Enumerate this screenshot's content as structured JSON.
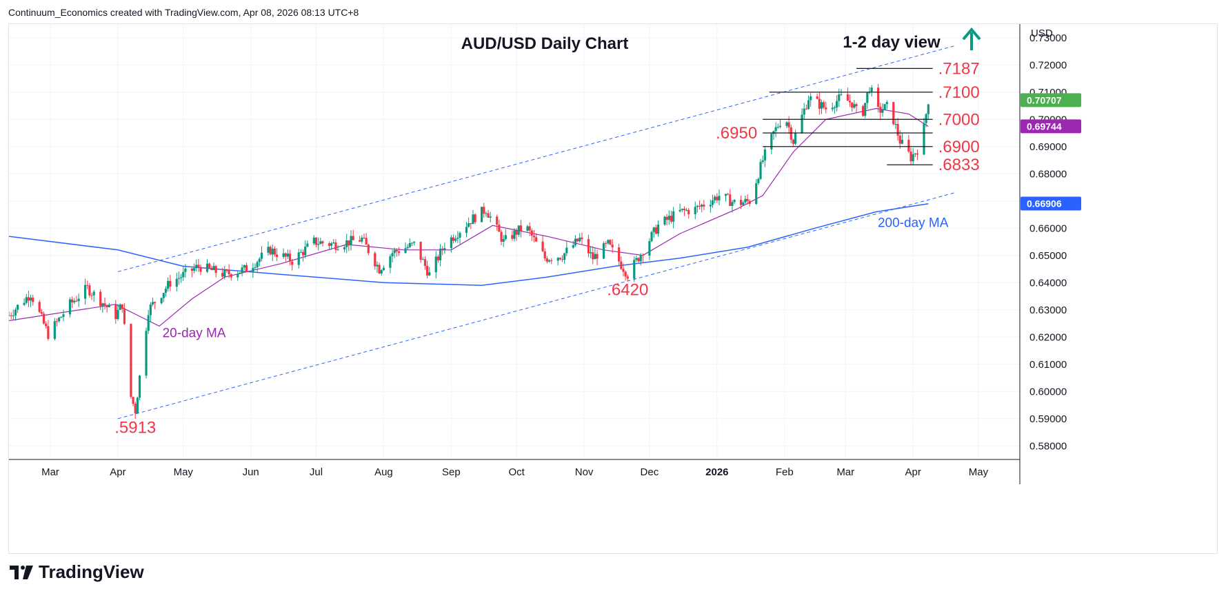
{
  "header": {
    "attribution": "Continuum_Economics created with TradingView.com, Apr 08, 2026 08:13 UTC+8"
  },
  "footer": {
    "brand": "TradingView"
  },
  "colors": {
    "up": "#089981",
    "down": "#f23645",
    "ma20": "#9c27b0",
    "ma200": "#2962ff",
    "channel": "#2962ff",
    "level": "#f23645",
    "last_price_bg": "#4caf50",
    "ma20_badge_bg": "#9c27b0",
    "ma200_badge_bg": "#2962ff",
    "arrow": "#089981"
  },
  "chart_data": {
    "type": "candlestick",
    "title": "AUD/USD Daily Chart",
    "view_label": "1-2 day view",
    "view_icon": "up-arrow-icon",
    "currency": "USD",
    "y_range": [
      0.575,
      0.735
    ],
    "y_ticks": [
      "0.73000",
      "0.72000",
      "0.71000",
      "0.70000",
      "0.69000",
      "0.68000",
      "0.67000",
      "0.66000",
      "0.65000",
      "0.64000",
      "0.63000",
      "0.62000",
      "0.61000",
      "0.60000",
      "0.59000",
      "0.58000"
    ],
    "x_ticks": [
      {
        "label": "Mar",
        "date": "2025-03-01"
      },
      {
        "label": "Apr",
        "date": "2025-04-01"
      },
      {
        "label": "May",
        "date": "2025-05-01"
      },
      {
        "label": "Jun",
        "date": "2025-06-01"
      },
      {
        "label": "Jul",
        "date": "2025-07-01"
      },
      {
        "label": "Aug",
        "date": "2025-08-01"
      },
      {
        "label": "Sep",
        "date": "2025-09-01"
      },
      {
        "label": "Oct",
        "date": "2025-10-01"
      },
      {
        "label": "Nov",
        "date": "2025-11-01"
      },
      {
        "label": "Dec",
        "date": "2025-12-01"
      },
      {
        "label": "2026",
        "date": "2026-01-01"
      },
      {
        "label": "Feb",
        "date": "2026-02-01"
      },
      {
        "label": "Mar",
        "date": "2026-03-01"
      },
      {
        "label": "Apr",
        "date": "2026-04-01"
      },
      {
        "label": "May",
        "date": "2026-05-01"
      }
    ],
    "x_range": [
      "2025-02-10",
      "2026-05-20"
    ],
    "price_path": [
      [
        "2025-02-10",
        0.628
      ],
      [
        "2025-02-20",
        0.636
      ],
      [
        "2025-02-28",
        0.621
      ],
      [
        "2025-03-10",
        0.632
      ],
      [
        "2025-03-18",
        0.638
      ],
      [
        "2025-03-31",
        0.628
      ],
      [
        "2025-04-03",
        0.632
      ],
      [
        "2025-04-07",
        0.598
      ],
      [
        "2025-04-09",
        0.593
      ],
      [
        "2025-04-15",
        0.63
      ],
      [
        "2025-04-25",
        0.64
      ],
      [
        "2025-05-08",
        0.646
      ],
      [
        "2025-05-20",
        0.643
      ],
      [
        "2025-05-30",
        0.645
      ],
      [
        "2025-06-10",
        0.652
      ],
      [
        "2025-06-20",
        0.648
      ],
      [
        "2025-06-30",
        0.655
      ],
      [
        "2025-07-10",
        0.654
      ],
      [
        "2025-07-22",
        0.656
      ],
      [
        "2025-07-30",
        0.645
      ],
      [
        "2025-08-05",
        0.651
      ],
      [
        "2025-08-15",
        0.654
      ],
      [
        "2025-08-22",
        0.643
      ],
      [
        "2025-08-29",
        0.654
      ],
      [
        "2025-09-10",
        0.663
      ],
      [
        "2025-09-17",
        0.667
      ],
      [
        "2025-09-25",
        0.655
      ],
      [
        "2025-10-05",
        0.661
      ],
      [
        "2025-10-14",
        0.649
      ],
      [
        "2025-10-22",
        0.65
      ],
      [
        "2025-10-30",
        0.656
      ],
      [
        "2025-11-05",
        0.649
      ],
      [
        "2025-11-12",
        0.654
      ],
      [
        "2025-11-21",
        0.643
      ],
      [
        "2025-11-25",
        0.648
      ],
      [
        "2025-12-05",
        0.661
      ],
      [
        "2025-12-15",
        0.666
      ],
      [
        "2025-12-22",
        0.667
      ],
      [
        "2026-01-02",
        0.672
      ],
      [
        "2026-01-10",
        0.669
      ],
      [
        "2026-01-16",
        0.67
      ],
      [
        "2026-01-22",
        0.685
      ],
      [
        "2026-01-27",
        0.695
      ],
      [
        "2026-02-01",
        0.702
      ],
      [
        "2026-02-05",
        0.692
      ],
      [
        "2026-02-12",
        0.708
      ],
      [
        "2026-02-20",
        0.704
      ],
      [
        "2026-02-27",
        0.708
      ],
      [
        "2026-03-04",
        0.706
      ],
      [
        "2026-03-08",
        0.7
      ],
      [
        "2026-03-12",
        0.712
      ],
      [
        "2026-03-16",
        0.703
      ],
      [
        "2026-03-21",
        0.705
      ],
      [
        "2026-03-26",
        0.692
      ],
      [
        "2026-03-31",
        0.686
      ],
      [
        "2026-04-03",
        0.689
      ],
      [
        "2026-04-06",
        0.697
      ],
      [
        "2026-04-08",
        0.7071
      ]
    ],
    "ma20": [
      [
        "2025-02-10",
        0.626
      ],
      [
        "2025-03-31",
        0.632
      ],
      [
        "2025-04-10",
        0.628
      ],
      [
        "2025-04-20",
        0.624
      ],
      [
        "2025-05-05",
        0.634
      ],
      [
        "2025-05-20",
        0.642
      ],
      [
        "2025-06-15",
        0.647
      ],
      [
        "2025-07-15",
        0.654
      ],
      [
        "2025-08-10",
        0.652
      ],
      [
        "2025-09-01",
        0.652
      ],
      [
        "2025-09-20",
        0.661
      ],
      [
        "2025-10-15",
        0.657
      ],
      [
        "2025-11-10",
        0.652
      ],
      [
        "2025-11-28",
        0.65
      ],
      [
        "2025-12-15",
        0.658
      ],
      [
        "2026-01-10",
        0.667
      ],
      [
        "2026-01-22",
        0.672
      ],
      [
        "2026-02-05",
        0.688
      ],
      [
        "2026-02-20",
        0.7
      ],
      [
        "2026-03-15",
        0.704
      ],
      [
        "2026-03-30",
        0.702
      ],
      [
        "2026-04-08",
        0.6974
      ]
    ],
    "ma200": [
      [
        "2025-02-10",
        0.657
      ],
      [
        "2025-04-01",
        0.652
      ],
      [
        "2025-05-01",
        0.646
      ],
      [
        "2025-06-15",
        0.643
      ],
      [
        "2025-08-01",
        0.64
      ],
      [
        "2025-09-15",
        0.639
      ],
      [
        "2025-10-15",
        0.642
      ],
      [
        "2025-11-15",
        0.646
      ],
      [
        "2025-12-15",
        0.649
      ],
      [
        "2026-01-15",
        0.653
      ],
      [
        "2026-02-15",
        0.66
      ],
      [
        "2026-03-15",
        0.666
      ],
      [
        "2026-04-08",
        0.669
      ]
    ],
    "channel_upper": {
      "from": [
        "2025-04-01",
        0.644
      ],
      "to": [
        "2026-04-20",
        0.727
      ]
    },
    "channel_lower": {
      "from": [
        "2025-04-01",
        0.59
      ],
      "to": [
        "2026-04-20",
        0.673
      ]
    },
    "levels": [
      {
        "label": ".7187",
        "value": 0.7187,
        "from": "2026-03-06",
        "to": "2026-04-10",
        "side": "right"
      },
      {
        "label": ".7100",
        "value": 0.71,
        "from": "2026-01-25",
        "to": "2026-04-10",
        "side": "right"
      },
      {
        "label": ".7000",
        "value": 0.7,
        "from": "2026-01-22",
        "to": "2026-04-10",
        "side": "right"
      },
      {
        "label": ".6950",
        "value": 0.695,
        "from": "2026-01-22",
        "to": "2026-04-10",
        "side": "left"
      },
      {
        "label": ".6900",
        "value": 0.69,
        "from": "2026-01-22",
        "to": "2026-04-10",
        "side": "right"
      },
      {
        "label": ".6833",
        "value": 0.6833,
        "from": "2026-03-20",
        "to": "2026-04-10",
        "side": "right"
      }
    ],
    "annotations": [
      {
        "text": ".5913",
        "date": "2025-04-09",
        "value": 0.5913
      },
      {
        "text": ".6420",
        "date": "2025-11-21",
        "value": 0.642
      },
      {
        "text": "20-day MA",
        "date": "2025-05-06",
        "value": 0.6215
      },
      {
        "text": "200-day MA",
        "date": "2026-04-01",
        "value": 0.662
      }
    ],
    "badges": [
      {
        "label": "0.70707",
        "value": 0.70707,
        "type": "last_price"
      },
      {
        "label": "0.69744",
        "value": 0.69744,
        "type": "ma20"
      },
      {
        "label": "0.66906",
        "value": 0.66906,
        "type": "ma200"
      }
    ]
  }
}
